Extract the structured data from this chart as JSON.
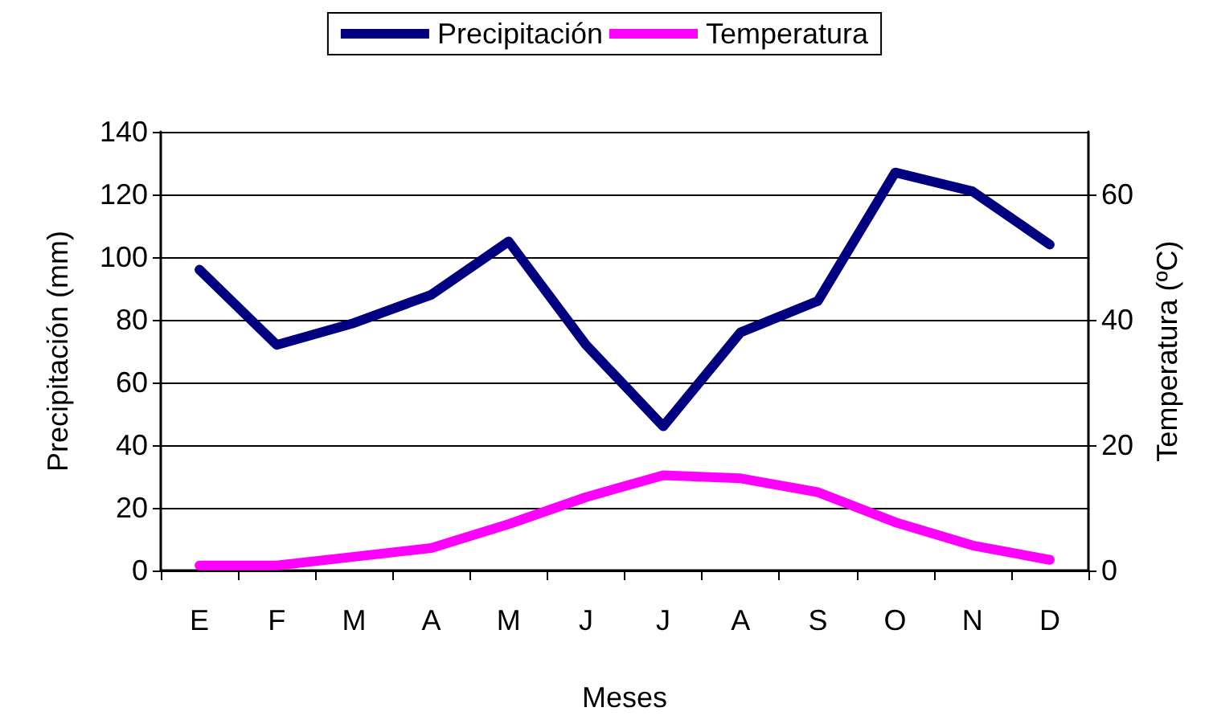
{
  "chart_data": {
    "type": "line",
    "xlabel": "Meses",
    "ylabel": "Precipitación (mm)",
    "y2label": "Temperatura (ºC)",
    "categories": [
      "E",
      "F",
      "M",
      "A",
      "M",
      "J",
      "J",
      "A",
      "S",
      "O",
      "N",
      "D"
    ],
    "series": [
      {
        "name": "Precipitación",
        "color": "#000080",
        "values": [
          96,
          72,
          79,
          88,
          105,
          72,
          46,
          76,
          86,
          127,
          121,
          104
        ]
      },
      {
        "name": "Temperatura",
        "color": "#ff00ff",
        "axis": "y2",
        "values": [
          0.8,
          0.8,
          2.2,
          3.6,
          7.4,
          11.7,
          15.2,
          14.7,
          12.5,
          7.7,
          4,
          1.7
        ]
      }
    ],
    "ylim": [
      0,
      140
    ],
    "yticks": [
      0,
      20,
      40,
      60,
      80,
      100,
      120,
      140
    ],
    "y2lim": [
      0,
      70
    ],
    "y2ticks": [
      0,
      20,
      40,
      60
    ],
    "grid": "y",
    "legend": "top",
    "marker": "none",
    "line_style": "solid"
  }
}
